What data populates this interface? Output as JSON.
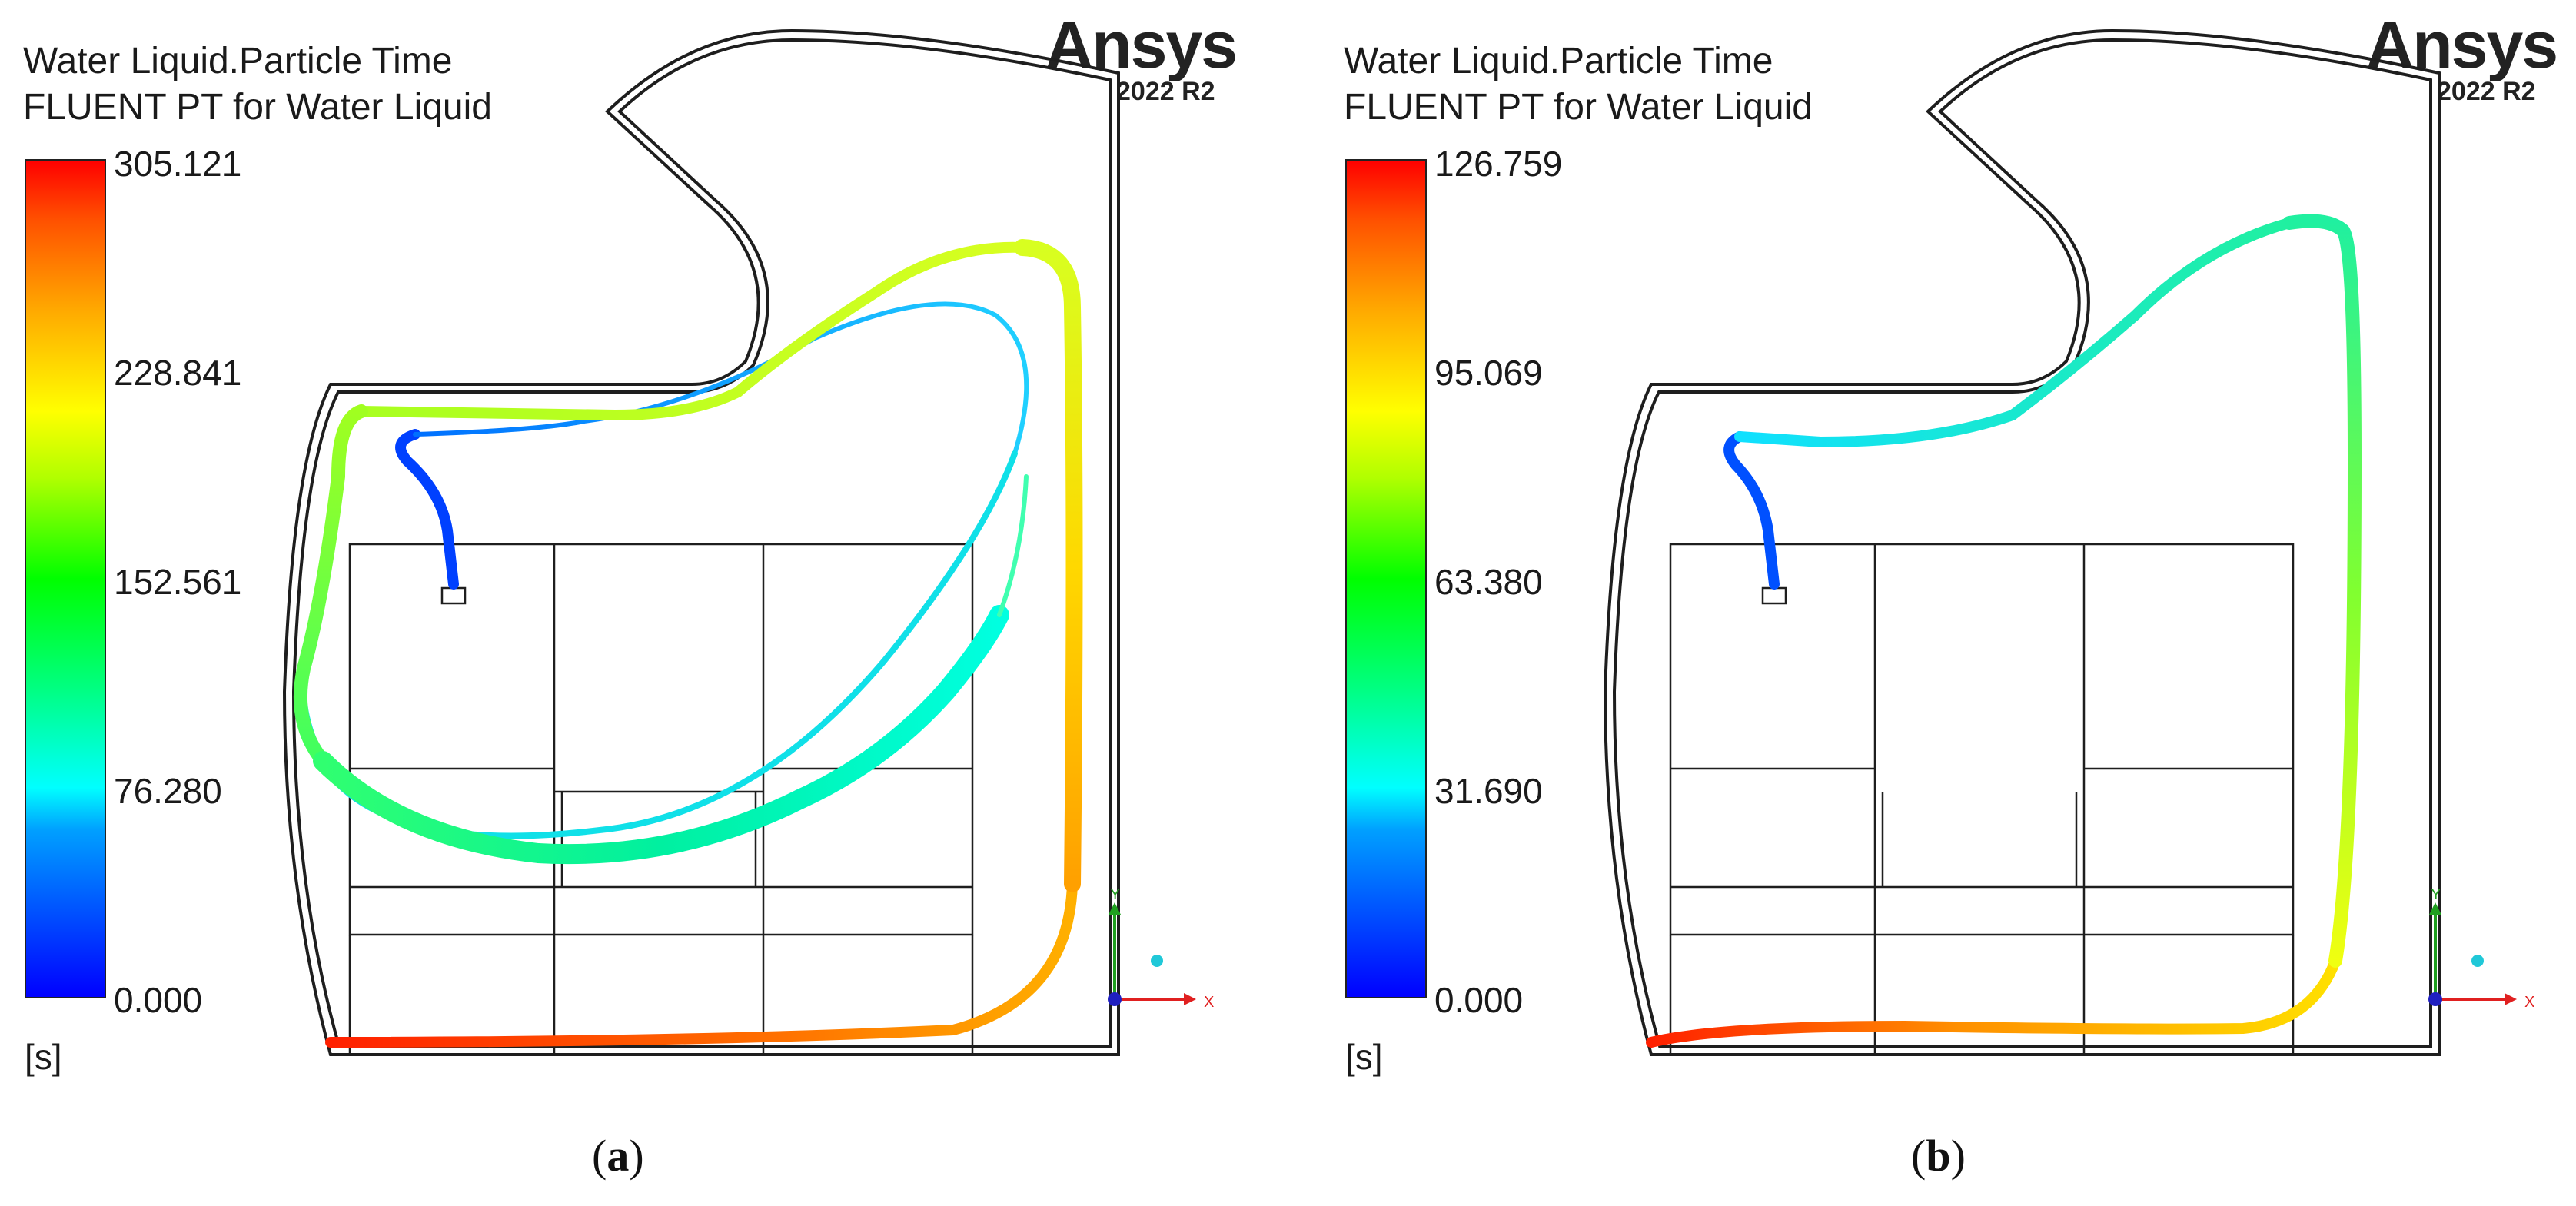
{
  "panels": [
    {
      "id": "a",
      "title_line1": "Water Liquid.Particle Time",
      "title_line2": "FLUENT PT for Water Liquid",
      "legend_ticks": [
        "305.121",
        "228.841",
        "152.561",
        "76.280",
        "0.000"
      ],
      "unit": "[s]",
      "brand": "Ansys",
      "version": "2022 R2",
      "axis_y_label": "Y",
      "axis_x_label": "X",
      "caption_open": "(",
      "caption_letter": "a",
      "caption_close": ")"
    },
    {
      "id": "b",
      "title_line1": "Water Liquid.Particle Time",
      "title_line2": "FLUENT PT for Water Liquid",
      "legend_ticks": [
        "126.759",
        "95.069",
        "63.380",
        "31.690",
        "0.000"
      ],
      "unit": "[s]",
      "brand": "Ansys",
      "version": "2022 R2",
      "axis_y_label": "Y",
      "axis_x_label": "X",
      "caption_open": "(",
      "caption_letter": "b",
      "caption_close": ")"
    }
  ],
  "colors": {
    "geometry": "#1e1e1e",
    "x_axis": "#e02020",
    "y_axis": "#20a020",
    "z_dot": "#20c8d8",
    "origin": "#2020c0"
  }
}
